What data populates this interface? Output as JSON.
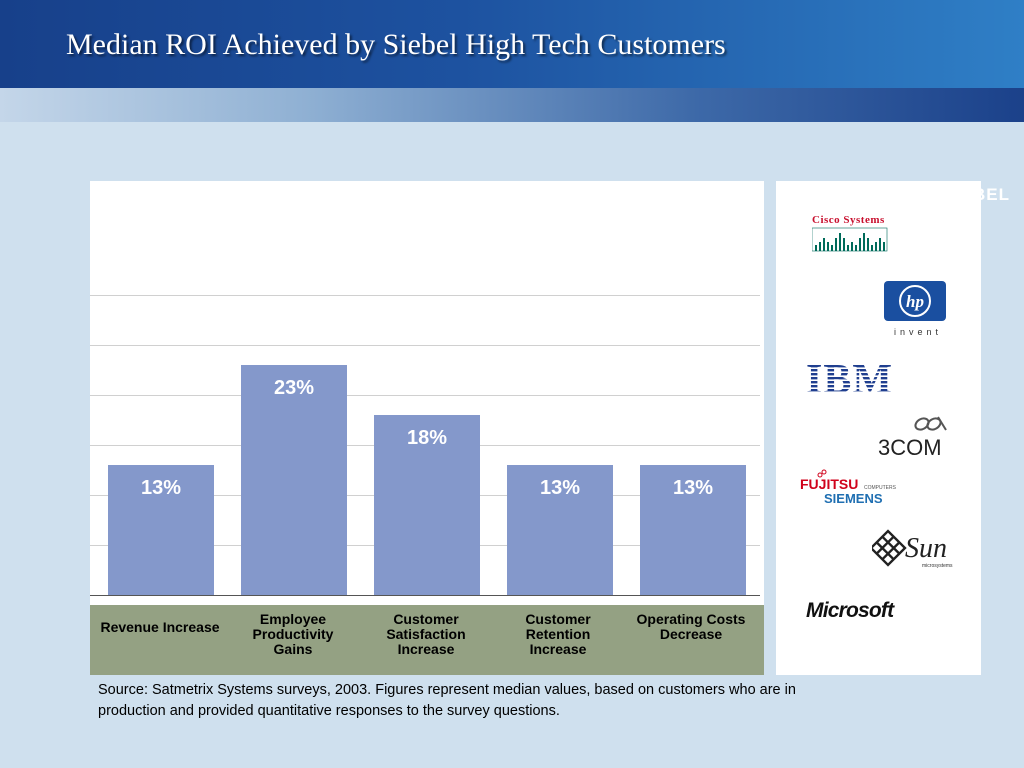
{
  "slide": {
    "title": "Median ROI Achieved by Siebel High Tech Customers",
    "brand": "SIEBEL",
    "footnote": "Source: Satmetrix Systems surveys, 2003. Figures represent median values, based on customers who are in production and provided quantitative responses to the survey questions."
  },
  "chart_data": {
    "type": "bar",
    "categories": [
      "Revenue Increase",
      "Employee Productivity Gains",
      "Customer Satisfaction Increase",
      "Customer Retention Increase",
      "Operating Costs Decrease"
    ],
    "values": [
      13,
      23,
      18,
      13,
      13
    ],
    "data_labels": [
      "13%",
      "23%",
      "18%",
      "13%",
      "13%"
    ],
    "unit": "%",
    "ylim": [
      0,
      30
    ],
    "grid": true,
    "legend": "none",
    "colors": {
      "bar": "#8498cb",
      "category_band": "#94a183",
      "gridline": "#d0d0d0",
      "data_label": "#ffffff"
    }
  },
  "logos": [
    {
      "name": "Cisco Systems",
      "text": "Cisco Systems"
    },
    {
      "name": "HP",
      "text": "hp",
      "tagline": "invent"
    },
    {
      "name": "IBM",
      "text": "IBM"
    },
    {
      "name": "3Com",
      "text": "3COM"
    },
    {
      "name": "Fujitsu Siemens Computers",
      "text": "FUJITSU",
      "text2": "COMPUTERS",
      "text3": "SIEMENS"
    },
    {
      "name": "Sun Microsystems",
      "text": "Sun",
      "tagline": "microsystems"
    },
    {
      "name": "Microsoft",
      "text": "Microsoft"
    }
  ],
  "colors": {
    "background": "#cfe0ee",
    "header": "#1d52a0",
    "title": "#ffffff"
  }
}
